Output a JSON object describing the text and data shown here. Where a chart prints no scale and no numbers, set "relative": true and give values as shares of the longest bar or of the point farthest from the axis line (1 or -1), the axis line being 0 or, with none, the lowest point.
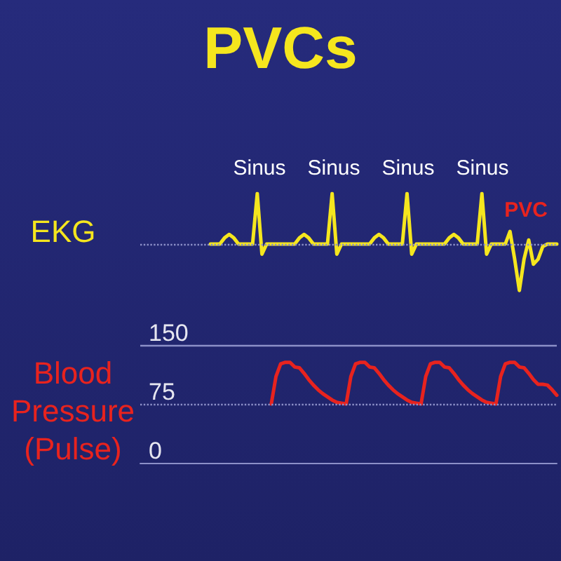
{
  "chart_data": [
    {
      "type": "line",
      "title": "PVCs",
      "ylabel": "EKG",
      "relative": true,
      "tick_labels": false,
      "grid": false,
      "line_style": "solid",
      "annotations": [
        "Sinus",
        "Sinus",
        "Sinus",
        "Sinus",
        "PVC"
      ],
      "categories": [
        null,
        null,
        null,
        null,
        null,
        null,
        null,
        null,
        null,
        null,
        null,
        null,
        null,
        null,
        null,
        null,
        null,
        null,
        null,
        null,
        null,
        null,
        null,
        null,
        null,
        null,
        null,
        null,
        null,
        null,
        null,
        null,
        null,
        null,
        null,
        null,
        null,
        null,
        null,
        null,
        null,
        null,
        null,
        null,
        null,
        null,
        null,
        null,
        null,
        null,
        null,
        null,
        null,
        null,
        null,
        null,
        null,
        null,
        null,
        null,
        null,
        null,
        null,
        null,
        null,
        null,
        null,
        null,
        null,
        null,
        null,
        null,
        null,
        null,
        null,
        null,
        null,
        null,
        null,
        null,
        null,
        null,
        null,
        null,
        null,
        null,
        null,
        null,
        null,
        null
      ],
      "ref_lines": [
        {
          "axis": "y",
          "value": 0,
          "label": null,
          "color": "#8c90c8",
          "line_style": "dotted"
        }
      ],
      "series": [
        {
          "color": "#f5e61e",
          "values": [
            null,
            null,
            null,
            null,
            null,
            null,
            null,
            null,
            null,
            null,
            null,
            null,
            null,
            null,
            null,
            0,
            0,
            0,
            0.12,
            0.19,
            0.12,
            0,
            0,
            0,
            0,
            1,
            -0.2,
            0,
            0,
            0,
            0,
            0,
            0,
            0,
            0.12,
            0.19,
            0.12,
            0,
            0,
            0,
            0,
            1,
            -0.2,
            0,
            0,
            0,
            0,
            0,
            0,
            0,
            0.12,
            0.19,
            0.12,
            0,
            0,
            0,
            0,
            1,
            -0.2,
            0,
            0,
            0,
            0,
            0,
            0,
            0,
            0.12,
            0.19,
            0.12,
            0,
            0,
            0,
            0,
            1,
            -0.2,
            0,
            0,
            0,
            0,
            0.25,
            -0.3,
            -0.92,
            -0.3,
            0.08,
            -0.4,
            -0.3,
            -0.05,
            0,
            0,
            0
          ]
        }
      ]
    },
    {
      "type": "line",
      "ylabel": "Blood\nPressure\n(Pulse)",
      "ylim": [
        0,
        150
      ],
      "yticks": [
        0,
        75,
        150
      ],
      "tick_labels": "y",
      "grid": false,
      "line_style": "solid",
      "categories": [
        null,
        null,
        null,
        null,
        null,
        null,
        null,
        null,
        null,
        null,
        null,
        null,
        null,
        null,
        null,
        null,
        null,
        null,
        null,
        null,
        null,
        null,
        null,
        null,
        null,
        null,
        null,
        null,
        null,
        null,
        null,
        null,
        null,
        null,
        null,
        null,
        null,
        null,
        null,
        null,
        null,
        null,
        null,
        null,
        null,
        null,
        null,
        null,
        null,
        null,
        null,
        null,
        null,
        null,
        null,
        null,
        null,
        null,
        null,
        null,
        null,
        null,
        null,
        null,
        null,
        null,
        null,
        null,
        null,
        null,
        null,
        null,
        null,
        null,
        null,
        null,
        null,
        null,
        null,
        null,
        null,
        null,
        null,
        null,
        null,
        null,
        null,
        null,
        null,
        null
      ],
      "ref_lines": [
        {
          "axis": "y",
          "value": 150,
          "label": null,
          "color": "#8c90c8",
          "line_style": "solid"
        },
        {
          "axis": "y",
          "value": 75,
          "label": null,
          "color": "#8c90c8",
          "line_style": "dotted"
        }
      ],
      "series": [
        {
          "color": "#e8231e",
          "values": [
            null,
            null,
            null,
            null,
            null,
            null,
            null,
            null,
            null,
            null,
            null,
            null,
            null,
            null,
            null,
            null,
            null,
            null,
            null,
            null,
            null,
            null,
            null,
            null,
            null,
            null,
            null,
            null,
            75,
            110,
            126,
            128,
            128,
            122,
            121,
            114,
            106,
            99,
            93,
            88,
            84,
            80,
            77,
            76,
            75,
            110,
            126,
            128,
            128,
            122,
            121,
            114,
            106,
            99,
            93,
            88,
            84,
            80,
            77,
            76,
            75,
            110,
            126,
            128,
            128,
            122,
            121,
            114,
            106,
            99,
            93,
            88,
            84,
            80,
            77,
            76,
            75,
            110,
            126,
            128,
            128,
            122,
            121,
            114,
            106,
            100,
            100,
            99,
            93,
            86
          ]
        }
      ]
    }
  ]
}
